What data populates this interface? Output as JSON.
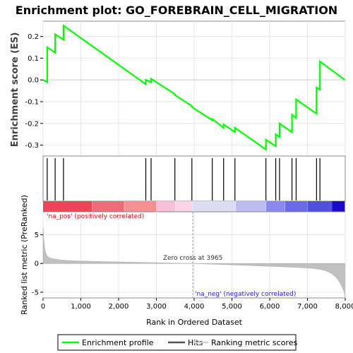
{
  "chart_data": {
    "type": "line",
    "title": "Enrichment plot: GO_FOREBRAIN_CELL_MIGRATION",
    "ylabel_es": "Enrichment score (ES)",
    "ylabel_metric": "Ranked list metric (PreRanked)",
    "xlabel": "Rank in Ordered Dataset",
    "xlim": [
      0,
      8000
    ],
    "es_ylim": [
      -0.35,
      0.27
    ],
    "metric_ylim": [
      -6,
      9
    ],
    "x_ticks": [
      "0",
      "1,000",
      "2,000",
      "3,000",
      "4,000",
      "5,000",
      "6,000",
      "7,000",
      "8,000"
    ],
    "x_tick_values": [
      0,
      1000,
      2000,
      3000,
      4000,
      5000,
      6000,
      7000,
      8000
    ],
    "es_ticks": [
      "0.2",
      "0.1",
      "0.0",
      "-0.1",
      "-0.2",
      "-0.3"
    ],
    "es_tick_values": [
      0.2,
      0.1,
      0.0,
      -0.1,
      -0.2,
      -0.3
    ],
    "metric_ticks": [
      "5",
      "0",
      "-5"
    ],
    "metric_tick_values": [
      5,
      0,
      -5
    ],
    "hits": [
      110,
      320,
      540,
      2720,
      2860,
      3490,
      3940,
      4480,
      4780,
      5080,
      5900,
      6160,
      6260,
      6590,
      6700,
      7240,
      7330
    ],
    "enrichment_profile": {
      "x": [
        0,
        110,
        110,
        320,
        320,
        540,
        540,
        2720,
        2720,
        2860,
        2860,
        3490,
        3490,
        3940,
        3940,
        4480,
        4480,
        4780,
        4780,
        5080,
        5080,
        5900,
        5900,
        6160,
        6160,
        6260,
        6260,
        6590,
        6590,
        6700,
        6700,
        7240,
        7240,
        7330,
        7330,
        7990
      ],
      "y": [
        0.0,
        -0.01,
        0.15,
        0.125,
        0.21,
        0.185,
        0.25,
        -0.02,
        0.0,
        -0.01,
        0.005,
        -0.065,
        -0.07,
        -0.12,
        -0.125,
        -0.185,
        -0.18,
        -0.22,
        -0.205,
        -0.24,
        -0.22,
        -0.32,
        -0.275,
        -0.305,
        -0.25,
        -0.262,
        -0.2,
        -0.24,
        -0.16,
        -0.175,
        -0.09,
        -0.155,
        -0.035,
        -0.045,
        0.085,
        0.0
      ]
    },
    "zero_cross": 3965,
    "zero_cross_label": "Zero cross at 3965",
    "pos_label": "'na_pos' (positively correlated)",
    "neg_label": "'na_neg' (negatively correlated)",
    "legend": [
      "Enrichment profile",
      "Hits",
      "Ranking metric scores"
    ],
    "colors": {
      "profile": "#00ff00",
      "hits": "#000000",
      "metric_fill": "#c0c0c0",
      "pos_text": "#cc1111",
      "neg_text": "#2222cc"
    },
    "heat_segments": [
      {
        "from": 0,
        "to": 1300,
        "color": "#ee4455"
      },
      {
        "from": 1300,
        "to": 2150,
        "color": "#f06b7a"
      },
      {
        "from": 2150,
        "to": 3000,
        "color": "#f49090"
      },
      {
        "from": 3000,
        "to": 3500,
        "color": "#f8c0d8"
      },
      {
        "from": 3500,
        "to": 3950,
        "color": "#f8d4e6"
      },
      {
        "from": 3950,
        "to": 5100,
        "color": "#dcdcf4"
      },
      {
        "from": 5100,
        "to": 5900,
        "color": "#bcbcf0"
      },
      {
        "from": 5900,
        "to": 6400,
        "color": "#8a8aee"
      },
      {
        "from": 6400,
        "to": 7000,
        "color": "#6a6ae8"
      },
      {
        "from": 7000,
        "to": 7650,
        "color": "#4f4fe0"
      },
      {
        "from": 7650,
        "to": 7990,
        "color": "#1a0acc"
      }
    ]
  }
}
